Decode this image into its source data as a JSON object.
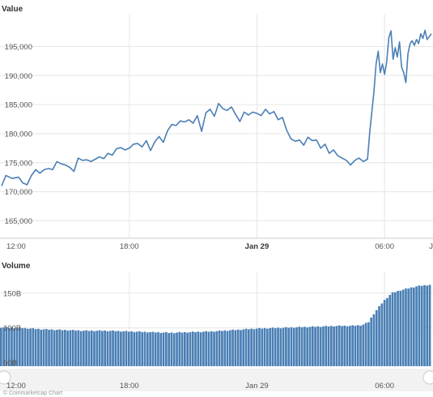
{
  "chart_data": [
    {
      "type": "line",
      "title": "Value",
      "xlabel": "",
      "ylabel": "",
      "ylim": [
        162000,
        200500
      ],
      "xlim": [
        0,
        20.2
      ],
      "x_unit": "hours since 12:00",
      "y_ticks": [
        165000,
        170000,
        175000,
        180000,
        185000,
        190000,
        195000
      ],
      "y_tick_labels": [
        "165,000",
        "170,000",
        "175,000",
        "180,000",
        "185,000",
        "190,000",
        "195,000"
      ],
      "x_ticks": [
        0,
        6,
        12,
        18,
        20.2
      ],
      "x_tick_labels": [
        "12:00",
        "18:00",
        "Jan 29",
        "06:00",
        "J"
      ],
      "grid": true,
      "color": "#4a7fb5",
      "series": [
        {
          "name": "",
          "x": [
            0,
            0.2,
            0.5,
            0.8,
            1.0,
            1.2,
            1.4,
            1.6,
            1.8,
            2.0,
            2.2,
            2.4,
            2.6,
            2.8,
            3.0,
            3.2,
            3.4,
            3.6,
            3.8,
            4.0,
            4.2,
            4.4,
            4.6,
            4.8,
            5.0,
            5.2,
            5.4,
            5.6,
            5.8,
            6.0,
            6.2,
            6.4,
            6.6,
            6.8,
            7.0,
            7.2,
            7.4,
            7.6,
            7.8,
            8.0,
            8.2,
            8.4,
            8.6,
            8.8,
            9.0,
            9.2,
            9.4,
            9.6,
            9.8,
            10.0,
            10.2,
            10.4,
            10.6,
            10.8,
            11.0,
            11.2,
            11.4,
            11.6,
            11.8,
            12.0,
            12.2,
            12.4,
            12.6,
            12.8,
            13.0,
            13.2,
            13.4,
            13.6,
            13.8,
            14.0,
            14.2,
            14.4,
            14.6,
            14.8,
            15.0,
            15.2,
            15.4,
            15.6,
            15.8,
            16.0,
            16.2,
            16.4,
            16.6,
            16.8,
            17.0,
            17.2,
            17.3,
            17.5,
            17.6,
            17.7,
            17.8,
            17.9,
            18.0,
            18.1,
            18.2,
            18.3,
            18.4,
            18.5,
            18.6,
            18.7,
            18.8,
            18.9,
            19.0,
            19.1,
            19.2,
            19.3,
            19.4,
            19.5,
            19.6,
            19.7,
            19.8,
            19.9,
            20.0,
            20.2
          ],
          "values": [
            171000,
            172800,
            172300,
            172500,
            171500,
            171200,
            172800,
            173800,
            173200,
            173800,
            174000,
            173800,
            175200,
            174800,
            174600,
            174200,
            173500,
            175800,
            175400,
            175500,
            175200,
            175600,
            176000,
            175700,
            176600,
            176300,
            177400,
            177600,
            177200,
            177500,
            178200,
            178300,
            177700,
            178800,
            177100,
            178600,
            179500,
            178500,
            180500,
            181600,
            181400,
            182200,
            182000,
            182400,
            181800,
            183100,
            180400,
            183600,
            184200,
            183000,
            185200,
            184300,
            184000,
            184600,
            183300,
            182100,
            183700,
            183200,
            183700,
            183500,
            183100,
            184200,
            183400,
            183800,
            182400,
            182800,
            180600,
            179100,
            178700,
            178900,
            178000,
            179400,
            178800,
            178900,
            177500,
            178200,
            176600,
            177200,
            176200,
            175800,
            175400,
            174600,
            175400,
            175800,
            175200,
            175600,
            180200,
            187200,
            192000,
            194200,
            190500,
            192000,
            190200,
            192400,
            196500,
            197700,
            192800,
            194800,
            193200,
            195800,
            191500,
            190500,
            188800,
            193800,
            195500,
            196000,
            195200,
            196200,
            195500,
            197200,
            196400,
            197800,
            196200,
            197200
          ]
        }
      ]
    },
    {
      "type": "bar",
      "title": "Volume",
      "xlabel": "",
      "ylabel": "",
      "ylim": [
        45,
        180
      ],
      "y_ticks": [
        50,
        100,
        150
      ],
      "y_tick_labels": [
        "50B",
        "100B",
        "150B"
      ],
      "x_tick_labels": [
        "12:00",
        "18:00",
        "Jan 29",
        "06:00"
      ],
      "bars_per_hour": 8,
      "color": "#4a7fb5",
      "grid": true,
      "series": [
        {
          "name": "",
          "envelope_x": [
            0,
            1,
            2,
            3,
            4,
            5,
            6,
            7,
            8,
            9,
            10,
            11,
            12,
            13,
            14,
            15,
            16,
            16.5,
            17,
            17.3,
            17.6,
            18,
            18.4,
            18.8,
            19.2,
            19.6,
            20.2
          ],
          "envelope_values": [
            101,
            100,
            98,
            97,
            96,
            96,
            95,
            94,
            93,
            94,
            95,
            97,
            99,
            100,
            101,
            102,
            103,
            103,
            104,
            108,
            122,
            138,
            150,
            154,
            157,
            160,
            162
          ]
        }
      ]
    }
  ],
  "footer_text": "© Coinmarketcap Chart"
}
